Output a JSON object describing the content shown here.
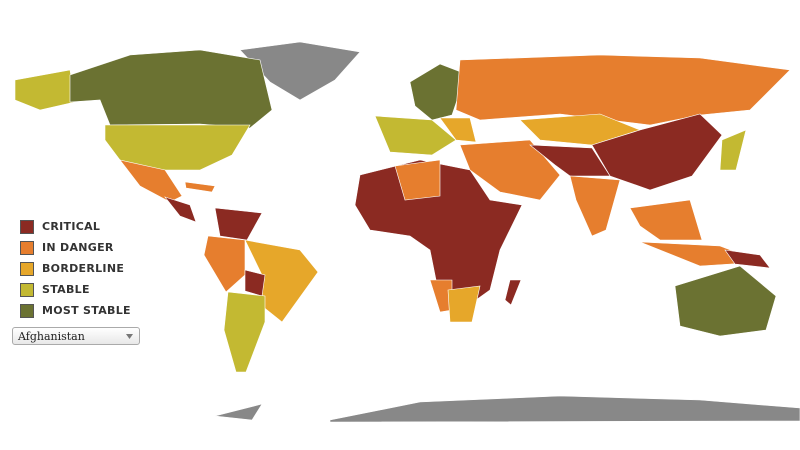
{
  "legend": [
    {
      "name": "CRITICAL",
      "color": "#8b2a22"
    },
    {
      "name": "IN DANGER",
      "color": "#e67e2e"
    },
    {
      "name": "BORDERLINE",
      "color": "#e6a72a"
    },
    {
      "name": "STABLE",
      "color": "#c3b932"
    },
    {
      "name": "MOST STABLE",
      "color": "#6b7232"
    }
  ],
  "dropdown": {
    "selected": "Afghanistan"
  }
}
